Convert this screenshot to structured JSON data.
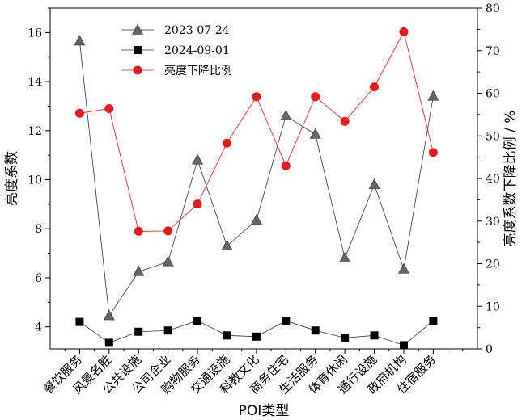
{
  "chart_data": {
    "type": "line",
    "categories": [
      "餐饮服务",
      "风景名胜",
      "公共设施",
      "公司企业",
      "购物服务",
      "交通设施",
      "科教文化",
      "商务住宅",
      "生活服务",
      "体育休闲",
      "通行设施",
      "政府机构",
      "住宿服务"
    ],
    "xlabel": "POI类型",
    "ylabel_left": "亮度系数",
    "ylabel_right": "亮度系数下降比例 / %",
    "ylim_left": [
      3.1,
      17
    ],
    "ylim_right": [
      0,
      80
    ],
    "yticks_left": [
      4,
      6,
      8,
      10,
      12,
      14,
      16
    ],
    "yticks_right": [
      0,
      10,
      20,
      30,
      40,
      50,
      60,
      70,
      80
    ],
    "legend_position": "top-center",
    "grid": false,
    "series": [
      {
        "name": "2023-07-24",
        "axis": "left",
        "marker": "triangle",
        "color": "#666666",
        "line_color": "#333333",
        "values": [
          15.65,
          4.45,
          6.25,
          6.65,
          10.8,
          7.3,
          8.35,
          12.6,
          11.85,
          6.8,
          9.8,
          6.35,
          13.4
        ]
      },
      {
        "name": "2024-09-01",
        "axis": "left",
        "marker": "square",
        "color": "#000000",
        "line_color": "#333333",
        "values": [
          4.2,
          3.35,
          3.8,
          3.85,
          4.25,
          3.65,
          3.6,
          4.25,
          3.85,
          3.55,
          3.65,
          3.25,
          4.25
        ]
      },
      {
        "name": "亮度下降比例",
        "axis": "right",
        "marker": "circle",
        "color": "#e41a1c",
        "line_color": "#e41a1c",
        "values": [
          55.3,
          56.4,
          27.6,
          27.7,
          34.0,
          48.3,
          59.2,
          43.0,
          59.2,
          53.4,
          61.5,
          74.4,
          46.1
        ]
      }
    ]
  }
}
